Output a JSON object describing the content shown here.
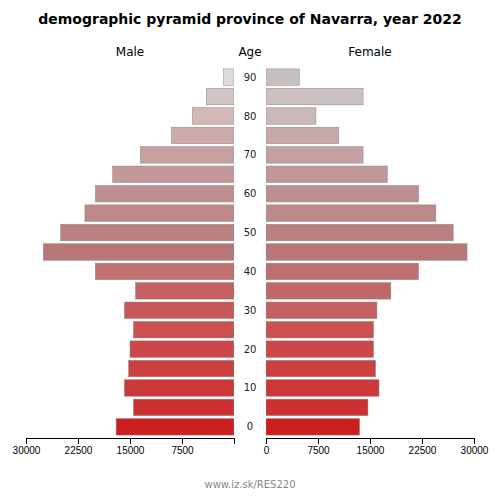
{
  "chart_data": {
    "type": "pyramid",
    "orientation": "horizontal",
    "title": "demographic pyramid province of Navarra, year 2022",
    "ylabel": "Age",
    "annotations": [
      "www.iz.sk/RES220"
    ],
    "categories": [
      "0",
      null,
      "10",
      null,
      "20",
      null,
      "30",
      null,
      "40",
      null,
      "50",
      null,
      "60",
      null,
      "70",
      null,
      "80",
      null,
      "90"
    ],
    "series": [
      {
        "name": "Male",
        "values": [
          17000,
          14500,
          15800,
          15200,
          15000,
          14500,
          15800,
          14200,
          20000,
          27500,
          25000,
          21500,
          20000,
          17500,
          13500,
          9000,
          6000,
          4000,
          1500
        ],
        "colors": [
          "#cc2020",
          "#cc3030",
          "#cc3838",
          "#cc4040",
          "#cc4848",
          "#cc5050",
          "#c85858",
          "#c46060",
          "#c07070",
          "#b87878",
          "#bc8080",
          "#be8888",
          "#c09090",
          "#c49898",
          "#c8a0a0",
          "#ccaaaa",
          "#d4b8b8",
          "#d0c4c4",
          "#e0dada"
        ]
      },
      {
        "name": "Female",
        "values": [
          13500,
          14700,
          16300,
          15800,
          15500,
          15500,
          16000,
          18000,
          22000,
          29000,
          27000,
          24500,
          22000,
          17500,
          14000,
          10500,
          7200,
          14000,
          4800
        ],
        "colors": [
          "#cc2020",
          "#cc3030",
          "#cc3838",
          "#cc4040",
          "#cc4848",
          "#cc5050",
          "#c46060",
          "#c06868",
          "#be7070",
          "#b87878",
          "#ba8080",
          "#bc8888",
          "#bc9090",
          "#c09898",
          "#c4a0a0",
          "#c8a8a8",
          "#ccb8b8",
          "#ccc0c0",
          "#c8c0c0"
        ]
      }
    ],
    "xlim": [
      0,
      30000
    ],
    "xticks": [
      0,
      7500,
      15000,
      22500,
      30000
    ],
    "grid": false
  }
}
